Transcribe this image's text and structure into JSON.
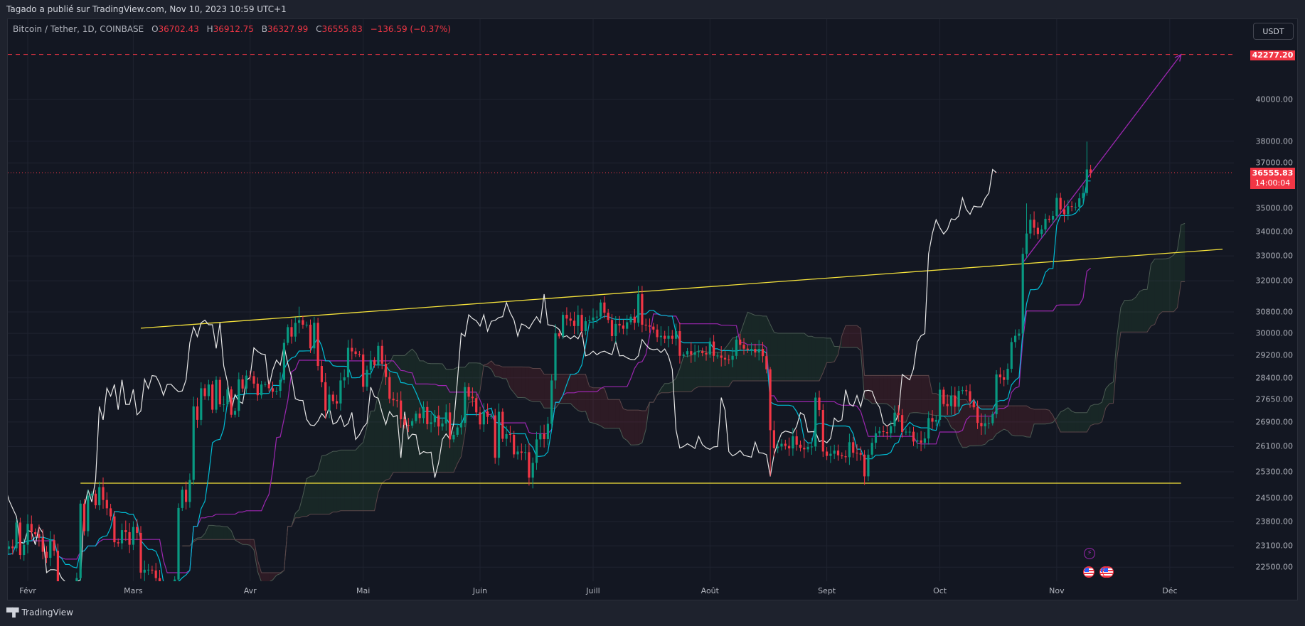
{
  "header": {
    "published_by": "Tagado a publié sur TradingView.com, Nov 10, 2023 10:59 UTC+1"
  },
  "legend": {
    "symbol": "Bitcoin / Tether, 1D, COINBASE",
    "open_label": "O",
    "open": "36702.43",
    "high_label": "H",
    "high": "36912.75",
    "low_label": "B",
    "low": "36327.99",
    "close_label": "C",
    "close": "36555.83",
    "change": "−136.59 (−0.37%)"
  },
  "currency_button": "USDT",
  "price_axis": {
    "ticks": [
      "40000.00",
      "38000.00",
      "37000.00",
      "35000.00",
      "34000.00",
      "33000.00",
      "32000.00",
      "30800.00",
      "30000.00",
      "29200.00",
      "28400.00",
      "27650.00",
      "26900.00",
      "26100.00",
      "25300.00",
      "24500.00",
      "23800.00",
      "23100.00",
      "22500.00"
    ],
    "alert_price_label": "42277.20",
    "last_price_label": "36555.83",
    "countdown_label": "14:00:04"
  },
  "time_axis": {
    "labels": [
      {
        "text": "Févr",
        "date": "2023-02-01"
      },
      {
        "text": "Mars",
        "date": "2023-03-01"
      },
      {
        "text": "Avr",
        "date": "2023-04-01"
      },
      {
        "text": "Mai",
        "date": "2023-05-01"
      },
      {
        "text": "Juin",
        "date": "2023-06-01"
      },
      {
        "text": "Juill",
        "date": "2023-07-01"
      },
      {
        "text": "Août",
        "date": "2023-08-01"
      },
      {
        "text": "Sept",
        "date": "2023-09-01"
      },
      {
        "text": "Oct",
        "date": "2023-10-01"
      },
      {
        "text": "Nov",
        "date": "2023-11-01"
      },
      {
        "text": "Déc",
        "date": "2023-12-01"
      }
    ]
  },
  "footer": {
    "brand": "TradingView",
    "logo_text": "17"
  },
  "events": {
    "icons": [
      "lightning-icon",
      "us-flag-icon",
      "us-flag-icon",
      "us-flag-icon"
    ]
  },
  "colors": {
    "background": "#131722",
    "up": "#089981",
    "down": "#f23645",
    "tenkan": "#00bcd4",
    "kijun": "#9c27b0",
    "chikou": "#e6e6e6",
    "cloud_bull": "rgba(67,160,71,0.12)",
    "cloud_bear": "rgba(242,54,69,0.12)",
    "span_a": "#4a5a52",
    "span_b": "#5b4649",
    "trendline": "#f5e23b",
    "arrow": "#9c27b0",
    "alert_line": "#f23645"
  },
  "chart_data": {
    "type": "candlestick",
    "scale": "log",
    "ylim": [
      22000,
      43200
    ],
    "grid": true,
    "start_date": "2023-01-22",
    "interval": "1D",
    "last_candle": {
      "open": 36702.43,
      "high": 36912.75,
      "low": 36327.99,
      "close": 36555.83
    },
    "closes": [
      22710,
      22930,
      22640,
      23060,
      23010,
      23080,
      23030,
      23770,
      22840,
      23130,
      23730,
      23490,
      23430,
      23330,
      22930,
      22760,
      23260,
      22960,
      21800,
      21630,
      21860,
      21790,
      21780,
      22200,
      24330,
      23520,
      24570,
      24630,
      24280,
      24830,
      24440,
      24190,
      23950,
      23200,
      23170,
      23550,
      23490,
      23130,
      23640,
      23470,
      22350,
      22430,
      22430,
      22410,
      22200,
      21700,
      20360,
      20190,
      20630,
      22160,
      24200,
      24750,
      24380,
      25050,
      27420,
      26970,
      28040,
      27770,
      28170,
      27310,
      28330,
      27490,
      27490,
      28000,
      27140,
      27270,
      28350,
      28030,
      28480,
      28460,
      28200,
      27800,
      28170,
      28180,
      28040,
      27920,
      27950,
      28330,
      29650,
      30230,
      29880,
      30390,
      30490,
      30320,
      30320,
      29450,
      30390,
      28820,
      28250,
      27280,
      27820,
      27600,
      27520,
      28310,
      28420,
      29470,
      29340,
      29250,
      29230,
      28090,
      28680,
      29030,
      28850,
      29540,
      28900,
      28430,
      27680,
      27630,
      27620,
      26990,
      26800,
      26780,
      26930,
      27180,
      27030,
      27400,
      26830,
      26890,
      27120,
      26750,
      26850,
      27220,
      26330,
      26480,
      26720,
      26870,
      28080,
      27750,
      27700,
      27220,
      26820,
      27250,
      27070,
      27120,
      25740,
      27240,
      26350,
      26500,
      26480,
      25850,
      25940,
      25900,
      25920,
      25120,
      25580,
      26330,
      26510,
      26340,
      26840,
      28310,
      30000,
      29890,
      30690,
      30550,
      30470,
      30270,
      30690,
      30080,
      30450,
      30480,
      30590,
      30620,
      31160,
      30770,
      30500,
      29900,
      30350,
      30290,
      30170,
      30410,
      30620,
      30390,
      31480,
      30320,
      30290,
      30250,
      30140,
      29860,
      29910,
      29800,
      29910,
      29800,
      30080,
      29180,
      29230,
      29350,
      29220,
      29310,
      29350,
      29280,
      29230,
      29700,
      29180,
      29190,
      29110,
      29050,
      29040,
      29180,
      29770,
      29580,
      29440,
      29400,
      29430,
      29300,
      29430,
      29170,
      28700,
      26630,
      26050,
      26100,
      26190,
      26120,
      26040,
      26430,
      26160,
      26060,
      26010,
      26090,
      26100,
      27720,
      27300,
      25940,
      25800,
      25870,
      25970,
      25820,
      25790,
      25760,
      26240,
      25900,
      25890,
      25840,
      25160,
      25840,
      26220,
      26530,
      26600,
      26570,
      26530,
      26760,
      27210,
      27130,
      26570,
      26580,
      26580,
      26260,
      26300,
      26220,
      26360,
      27030,
      26910,
      26970,
      27990,
      27500,
      27430,
      27790,
      27410,
      27950,
      27970,
      27940,
      27590,
      27390,
      26870,
      26760,
      26860,
      26860,
      27160,
      28520,
      28420,
      28330,
      28720,
      29680,
      29910,
      29990,
      33080,
      33920,
      34500,
      34160,
      33900,
      34090,
      34540,
      34500,
      34660,
      35440,
      34940,
      34730,
      35080,
      35050,
      35050,
      35420,
      35650,
      36700,
      36555.83
    ],
    "wick_ranges": {
      "2023-03-10": [
        19570,
        20300
      ],
      "2023-03-17": [
        24900,
        27750
      ],
      "2023-04-14": [
        30000,
        31000
      ],
      "2023-06-15": [
        24790,
        25750
      ],
      "2023-07-13": [
        30250,
        31800
      ],
      "2023-08-17": [
        25170,
        28780
      ],
      "2023-09-11": [
        24900,
        25990
      ],
      "2023-10-24": [
        32900,
        35200
      ],
      "2023-11-09": [
        35530,
        37980
      ],
      "2023-11-10": [
        36327.99,
        36912.75
      ]
    },
    "indicator": {
      "name": "Ichimoku Cloud",
      "conversion": 9,
      "base": 26,
      "span_b": 52,
      "displacement": 26
    },
    "drawings": [
      {
        "type": "trendline",
        "points": [
          [
            "2023-03-03",
            30190
          ],
          [
            "2023-12-15",
            33270
          ]
        ]
      },
      {
        "type": "trendline",
        "points": [
          [
            "2023-02-15",
            24950
          ],
          [
            "2023-12-04",
            24950
          ]
        ]
      },
      {
        "type": "arrow",
        "points": [
          [
            "2023-10-23",
            32720
          ],
          [
            "2023-12-04",
            42277.2
          ]
        ]
      },
      {
        "type": "horizontal",
        "price": 42277.2
      }
    ]
  }
}
